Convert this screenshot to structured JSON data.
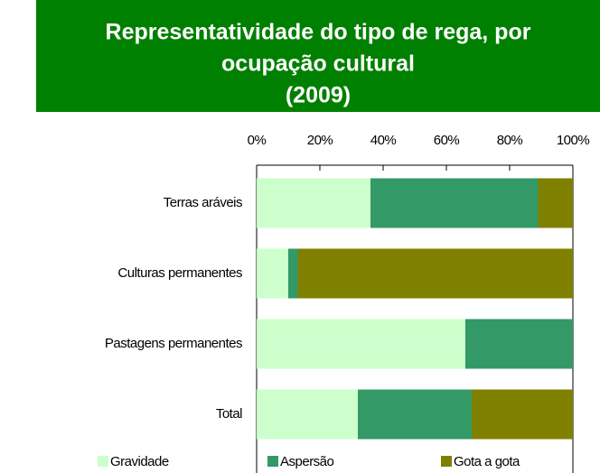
{
  "chart_data": {
    "type": "stacked_bar_horizontal",
    "title": [
      "Representatividade do tipo de rega, por",
      "ocupação cultural",
      "(2009)"
    ],
    "categories": [
      "Terras aráveis",
      "Culturas permanentes",
      "Pastagens permanentes",
      "Total"
    ],
    "series": [
      {
        "name": "Gravidade",
        "color": "#ccffcc",
        "values": [
          36,
          10,
          66,
          32
        ]
      },
      {
        "name": "Aspersão",
        "color": "#339966",
        "values": [
          53,
          3,
          34,
          36
        ]
      },
      {
        "name": "Gota a gota",
        "color": "#808000",
        "values": [
          11,
          87,
          0,
          32
        ]
      }
    ],
    "xlim": [
      0,
      100
    ],
    "xticks": [
      {
        "value": 0,
        "label": "0%"
      },
      {
        "value": 20,
        "label": "20%"
      },
      {
        "value": 40,
        "label": "40%"
      },
      {
        "value": 60,
        "label": "60%"
      },
      {
        "value": 80,
        "label": "80%"
      },
      {
        "value": 100,
        "label": "100%"
      }
    ],
    "legend": "bottom"
  }
}
